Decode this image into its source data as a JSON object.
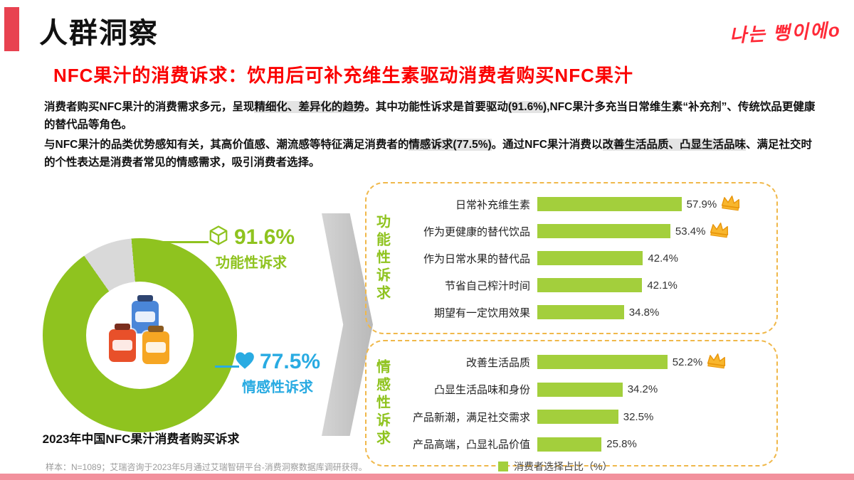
{
  "header": {
    "title": "人群洞察",
    "handwriting": "나는 뻥이에o",
    "subtitle": "NFC果汁的消费诉求：饮用后可补充维生素驱动消费者购买NFC果汁"
  },
  "intro": {
    "para1_segments": [
      {
        "text": "消费者购买NFC果汁的消费需求多元，呈现",
        "hl": false
      },
      {
        "text": "精细化、差异化的趋势",
        "hl": true
      },
      {
        "text": "。其中功能性诉求是首要驱动",
        "hl": false
      },
      {
        "text": "(91.6%)",
        "hl": true
      },
      {
        "text": ",NFC果汁多充当日常维生素“补充剂”、传统饮品更健康的替代品等角色。",
        "hl": false
      }
    ],
    "para2_segments": [
      {
        "text": "与NFC果汁的品类优势感知有关，其高价值感、潮流感等特征满足消费者的",
        "hl": false
      },
      {
        "text": "情感诉求(77.5%)",
        "hl": true
      },
      {
        "text": "。通过NFC果汁消费以",
        "hl": false
      },
      {
        "text": "改善生活品质、凸显生活品味",
        "hl": true
      },
      {
        "text": "、满足社交时的个性表达是消费者常见的情感需求，吸引消费者选择。",
        "hl": false
      }
    ]
  },
  "donut": {
    "icons": [
      {
        "name": "juice-cup-blue",
        "color": "#4a86d8"
      },
      {
        "name": "juice-cup-red",
        "color": "#e8502a"
      },
      {
        "name": "juice-cup-orange",
        "color": "#f6a623"
      }
    ]
  },
  "legend": {
    "label": "消费者选择占比（%）"
  },
  "footnote": "样本：N=1089；艾瑞咨询于2023年5月通过艾瑞智研平台-消费洞察数据库调研获得。",
  "colors": {
    "accent_red": "#e84250",
    "subtitle_red": "#fb0000",
    "green": "#8fc31f",
    "bar_green": "#a3cf3c",
    "blue": "#29abe2",
    "gray_slice": "#d9d9d9",
    "gold": "#f8b62d",
    "dashed_border": "#f0b84a",
    "footer_pink": "#f2919d",
    "handwriting_red": "#ff2a38"
  },
  "chart_data": [
    {
      "type": "pie",
      "title": "2023年中国NFC果汁消费者购买诉求",
      "slices": [
        {
          "label": "功能性诉求",
          "value": 91.6,
          "color": "#8fc31f"
        },
        {
          "label": "其他",
          "value": 8.4,
          "color": "#d9d9d9"
        }
      ],
      "callouts": [
        {
          "label": "功能性诉求",
          "value": "91.6%",
          "color": "#8fc31f",
          "icon": "cube-icon"
        },
        {
          "label": "情感性诉求",
          "value": "77.5%",
          "color": "#29abe2",
          "icon": "heart-icon"
        }
      ],
      "legend_position": "none"
    },
    {
      "type": "bar",
      "orientation": "horizontal",
      "unit": "%",
      "xlim": [
        0,
        65
      ],
      "bar_color": "#a3cf3c",
      "legend": "消费者选择占比（%）",
      "groups": [
        {
          "label": "功能性诉求",
          "items": [
            {
              "category": "日常补充维生素",
              "value": 57.9,
              "crown": true
            },
            {
              "category": "作为更健康的替代饮品",
              "value": 53.4,
              "crown": true
            },
            {
              "category": "作为日常水果的替代品",
              "value": 42.4,
              "crown": false
            },
            {
              "category": "节省自己榨汁时间",
              "value": 42.1,
              "crown": false
            },
            {
              "category": "期望有一定饮用效果",
              "value": 34.8,
              "crown": false
            }
          ]
        },
        {
          "label": "情感性诉求",
          "items": [
            {
              "category": "改善生活品质",
              "value": 52.2,
              "crown": true
            },
            {
              "category": "凸显生活品味和身份",
              "value": 34.2,
              "crown": false
            },
            {
              "category": "产品新潮，满足社交需求",
              "value": 32.5,
              "crown": false
            },
            {
              "category": "产品高端，凸显礼品价值",
              "value": 25.8,
              "crown": false
            }
          ]
        }
      ]
    }
  ]
}
